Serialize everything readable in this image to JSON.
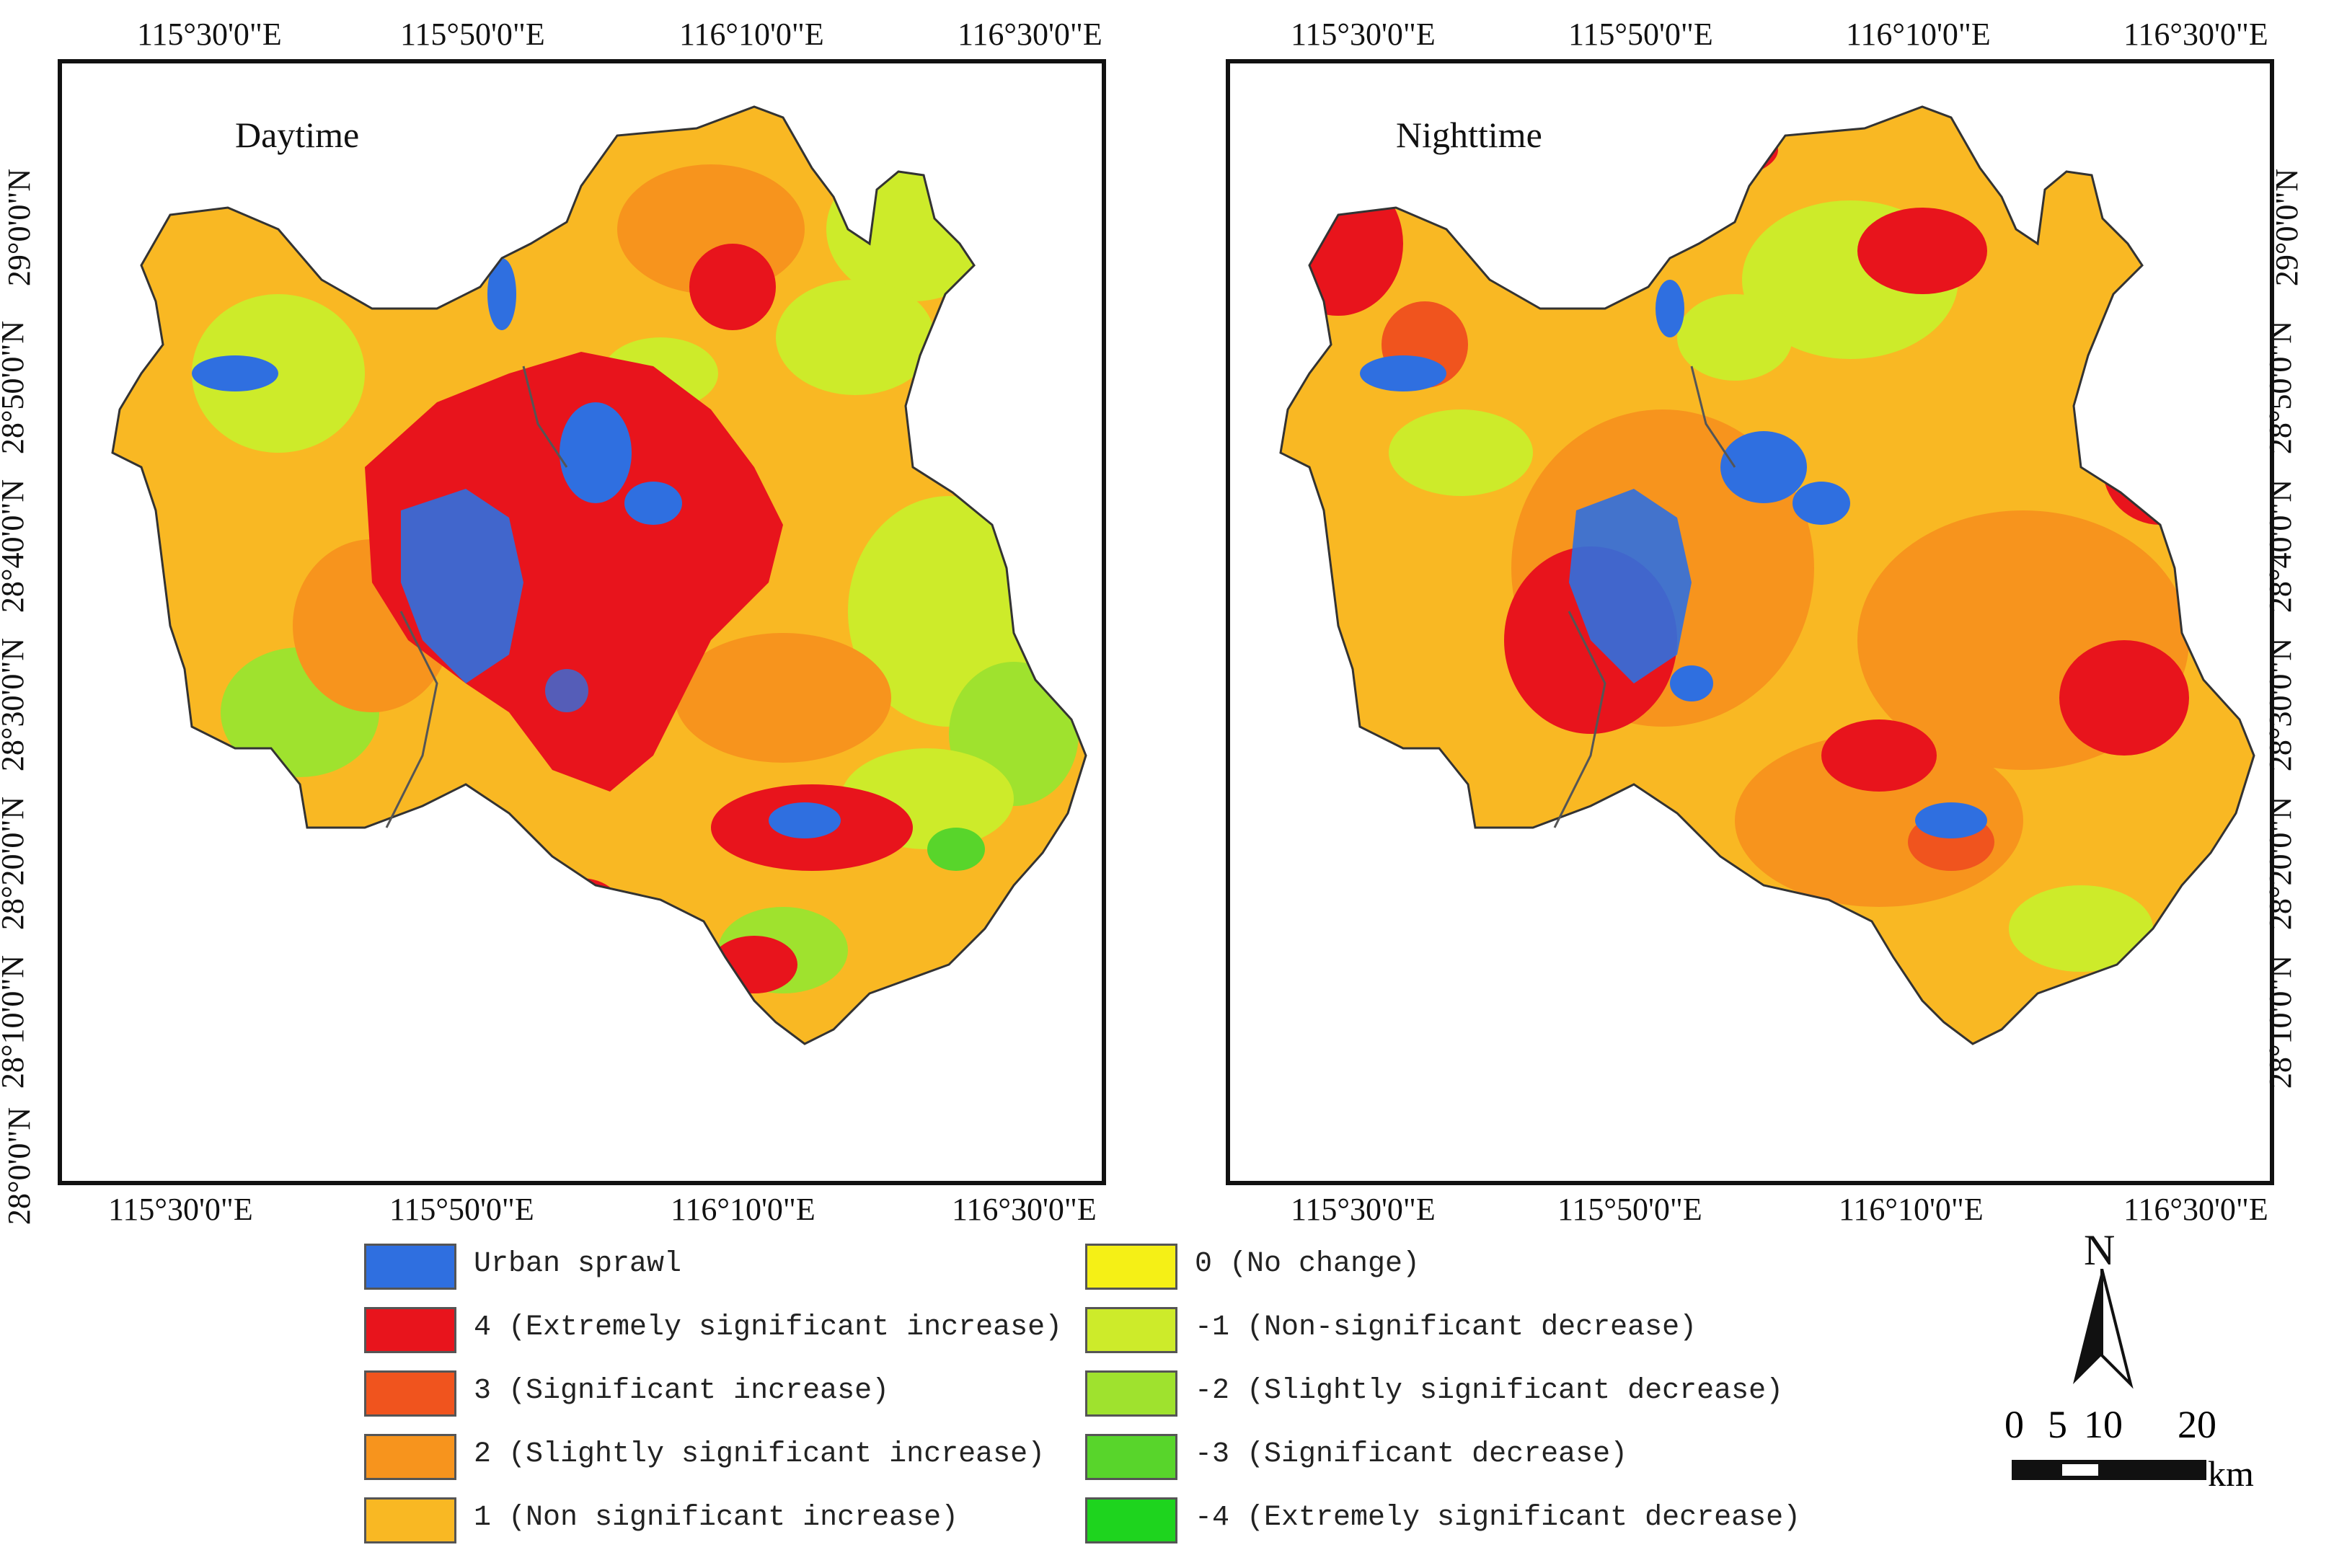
{
  "maps": [
    {
      "title": "Daytime"
    },
    {
      "title": "Nighttime"
    }
  ],
  "lon_labels": [
    "115°30'0\"E",
    "115°50'0\"E",
    "116°10'0\"E",
    "116°30'0\"E"
  ],
  "lat_labels": [
    "29°0'0\"N",
    "28°50'0\"N",
    "28°40'0\"N",
    "28°30'0\"N",
    "28°20'0\"N",
    "28°10'0\"N",
    "28°0'0\"N"
  ],
  "legend": [
    {
      "label": "Urban sprawl",
      "color": "#2f6fe0"
    },
    {
      "label": "4 (Extremely significant increase)",
      "color": "#e8141c"
    },
    {
      "label": "3 (Significant increase)",
      "color": "#f0541e"
    },
    {
      "label": "2 (Slightly significant increase)",
      "color": "#f7941d"
    },
    {
      "label": "1 (Non significant increase)",
      "color": "#f9b823"
    },
    {
      "label": "0 (No change)",
      "color": "#f5f016"
    },
    {
      "label": "-1 (Non-significant decrease)",
      "color": "#cdeb2a"
    },
    {
      "label": "-2 (Slightly significant decrease)",
      "color": "#9fe22e"
    },
    {
      "label": "-3 (Significant decrease)",
      "color": "#58d52b"
    },
    {
      "label": "-4 (Extremely significant decrease)",
      "color": "#1ed41e"
    }
  ],
  "north_arrow": {
    "letter": "N"
  },
  "scale_bar": {
    "ticks": [
      "0",
      "5",
      "10",
      "20"
    ],
    "unit": "km"
  }
}
